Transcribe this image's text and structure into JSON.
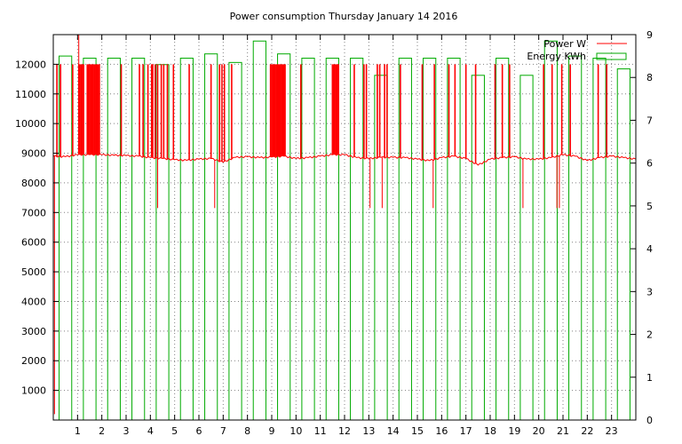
{
  "chart_data": {
    "type": "line",
    "title": "Power consumption Thursday January 14 2016",
    "xlabel": "",
    "ylabel": "",
    "y2label": "",
    "x_unit": "hour",
    "xlim": [
      0,
      24
    ],
    "ylim": [
      0,
      13000
    ],
    "y2lim": [
      0,
      9
    ],
    "x_ticks": [
      1,
      2,
      3,
      4,
      5,
      6,
      7,
      8,
      9,
      10,
      11,
      12,
      13,
      14,
      15,
      16,
      17,
      18,
      19,
      20,
      21,
      22,
      23
    ],
    "y_ticks": [
      1000,
      2000,
      3000,
      4000,
      5000,
      6000,
      7000,
      8000,
      9000,
      10000,
      11000,
      12000
    ],
    "y2_ticks": [
      0,
      1,
      2,
      3,
      4,
      5,
      6,
      7,
      8,
      9
    ],
    "grid": true,
    "legend_position": "top-right",
    "series": [
      {
        "name": "Power W",
        "axis": "y1",
        "color": "#ff0000",
        "baseline_points": [
          [
            0,
            8900
          ],
          [
            0.5,
            8880
          ],
          [
            1,
            8950
          ],
          [
            1.5,
            8950
          ],
          [
            2,
            8950
          ],
          [
            2.5,
            8930
          ],
          [
            3,
            8920
          ],
          [
            3.5,
            8900
          ],
          [
            4,
            8850
          ],
          [
            4.5,
            8820
          ],
          [
            5,
            8780
          ],
          [
            5.5,
            8760
          ],
          [
            6,
            8800
          ],
          [
            6.5,
            8820
          ],
          [
            7,
            8700
          ],
          [
            7.5,
            8860
          ],
          [
            8,
            8880
          ],
          [
            8.5,
            8850
          ],
          [
            9,
            8870
          ],
          [
            9.5,
            8900
          ],
          [
            10,
            8820
          ],
          [
            10.5,
            8850
          ],
          [
            11,
            8900
          ],
          [
            11.5,
            8950
          ],
          [
            12,
            8950
          ],
          [
            12.5,
            8850
          ],
          [
            13,
            8820
          ],
          [
            13.5,
            8860
          ],
          [
            14,
            8860
          ],
          [
            14.5,
            8850
          ],
          [
            15,
            8800
          ],
          [
            15.5,
            8750
          ],
          [
            16,
            8850
          ],
          [
            16.5,
            8900
          ],
          [
            17,
            8820
          ],
          [
            17.5,
            8600
          ],
          [
            18,
            8800
          ],
          [
            18.5,
            8850
          ],
          [
            19,
            8880
          ],
          [
            19.5,
            8800
          ],
          [
            20,
            8800
          ],
          [
            20.5,
            8850
          ],
          [
            21,
            8950
          ],
          [
            21.5,
            8900
          ],
          [
            22,
            8750
          ],
          [
            22.5,
            8850
          ],
          [
            23,
            8900
          ],
          [
            23.5,
            8850
          ],
          [
            24,
            8800
          ]
        ],
        "spikes_12000": [
          0.15,
          0.3,
          0.8,
          1.05,
          1.1,
          1.15,
          1.2,
          1.25,
          1.4,
          1.45,
          1.5,
          1.55,
          1.6,
          1.65,
          1.7,
          1.75,
          1.8,
          1.85,
          1.9,
          2.8,
          3.55,
          3.7,
          3.9,
          4.05,
          4.1,
          4.2,
          4.3,
          4.45,
          4.55,
          4.7,
          4.95,
          5.6,
          6.5,
          6.85,
          6.95,
          7.05,
          7.35,
          8.95,
          9.0,
          9.05,
          9.1,
          9.15,
          9.2,
          9.25,
          9.3,
          9.35,
          9.4,
          9.45,
          9.5,
          9.55,
          10.2,
          11.5,
          11.55,
          11.6,
          11.65,
          11.7,
          11.75,
          12.4,
          12.8,
          12.9,
          13.35,
          13.45,
          13.65,
          13.75,
          14.3,
          15.2,
          15.7,
          16.3,
          16.55,
          17.0,
          17.4,
          18.2,
          18.5,
          18.8,
          20.2,
          20.55,
          20.95,
          21.3,
          22.45,
          22.8
        ],
        "spikes_other": [
          [
            0.05,
            200
          ],
          [
            1.05,
            13000
          ],
          [
            4.3,
            7150
          ],
          [
            6.65,
            7150
          ],
          [
            13.05,
            7150
          ],
          [
            13.55,
            7150
          ],
          [
            15.65,
            7150
          ],
          [
            19.35,
            7150
          ],
          [
            20.85,
            7150
          ],
          [
            20.75,
            7150
          ]
        ]
      },
      {
        "name": "Energy KWh",
        "axis": "y2",
        "color": "#00aa00",
        "type": "bar",
        "x": [
          0,
          1,
          2,
          3,
          4,
          5,
          6,
          7,
          8,
          9,
          10,
          11,
          12,
          13,
          14,
          15,
          16,
          17,
          18,
          19,
          20,
          21,
          22,
          23
        ],
        "values": [
          8.5,
          8.45,
          8.45,
          8.45,
          8.3,
          8.45,
          8.55,
          8.35,
          8.85,
          8.55,
          8.45,
          8.45,
          8.45,
          8.05,
          8.45,
          8.45,
          8.45,
          8.05,
          8.45,
          8.05,
          8.85,
          8.5,
          8.45,
          8.2
        ]
      }
    ]
  }
}
